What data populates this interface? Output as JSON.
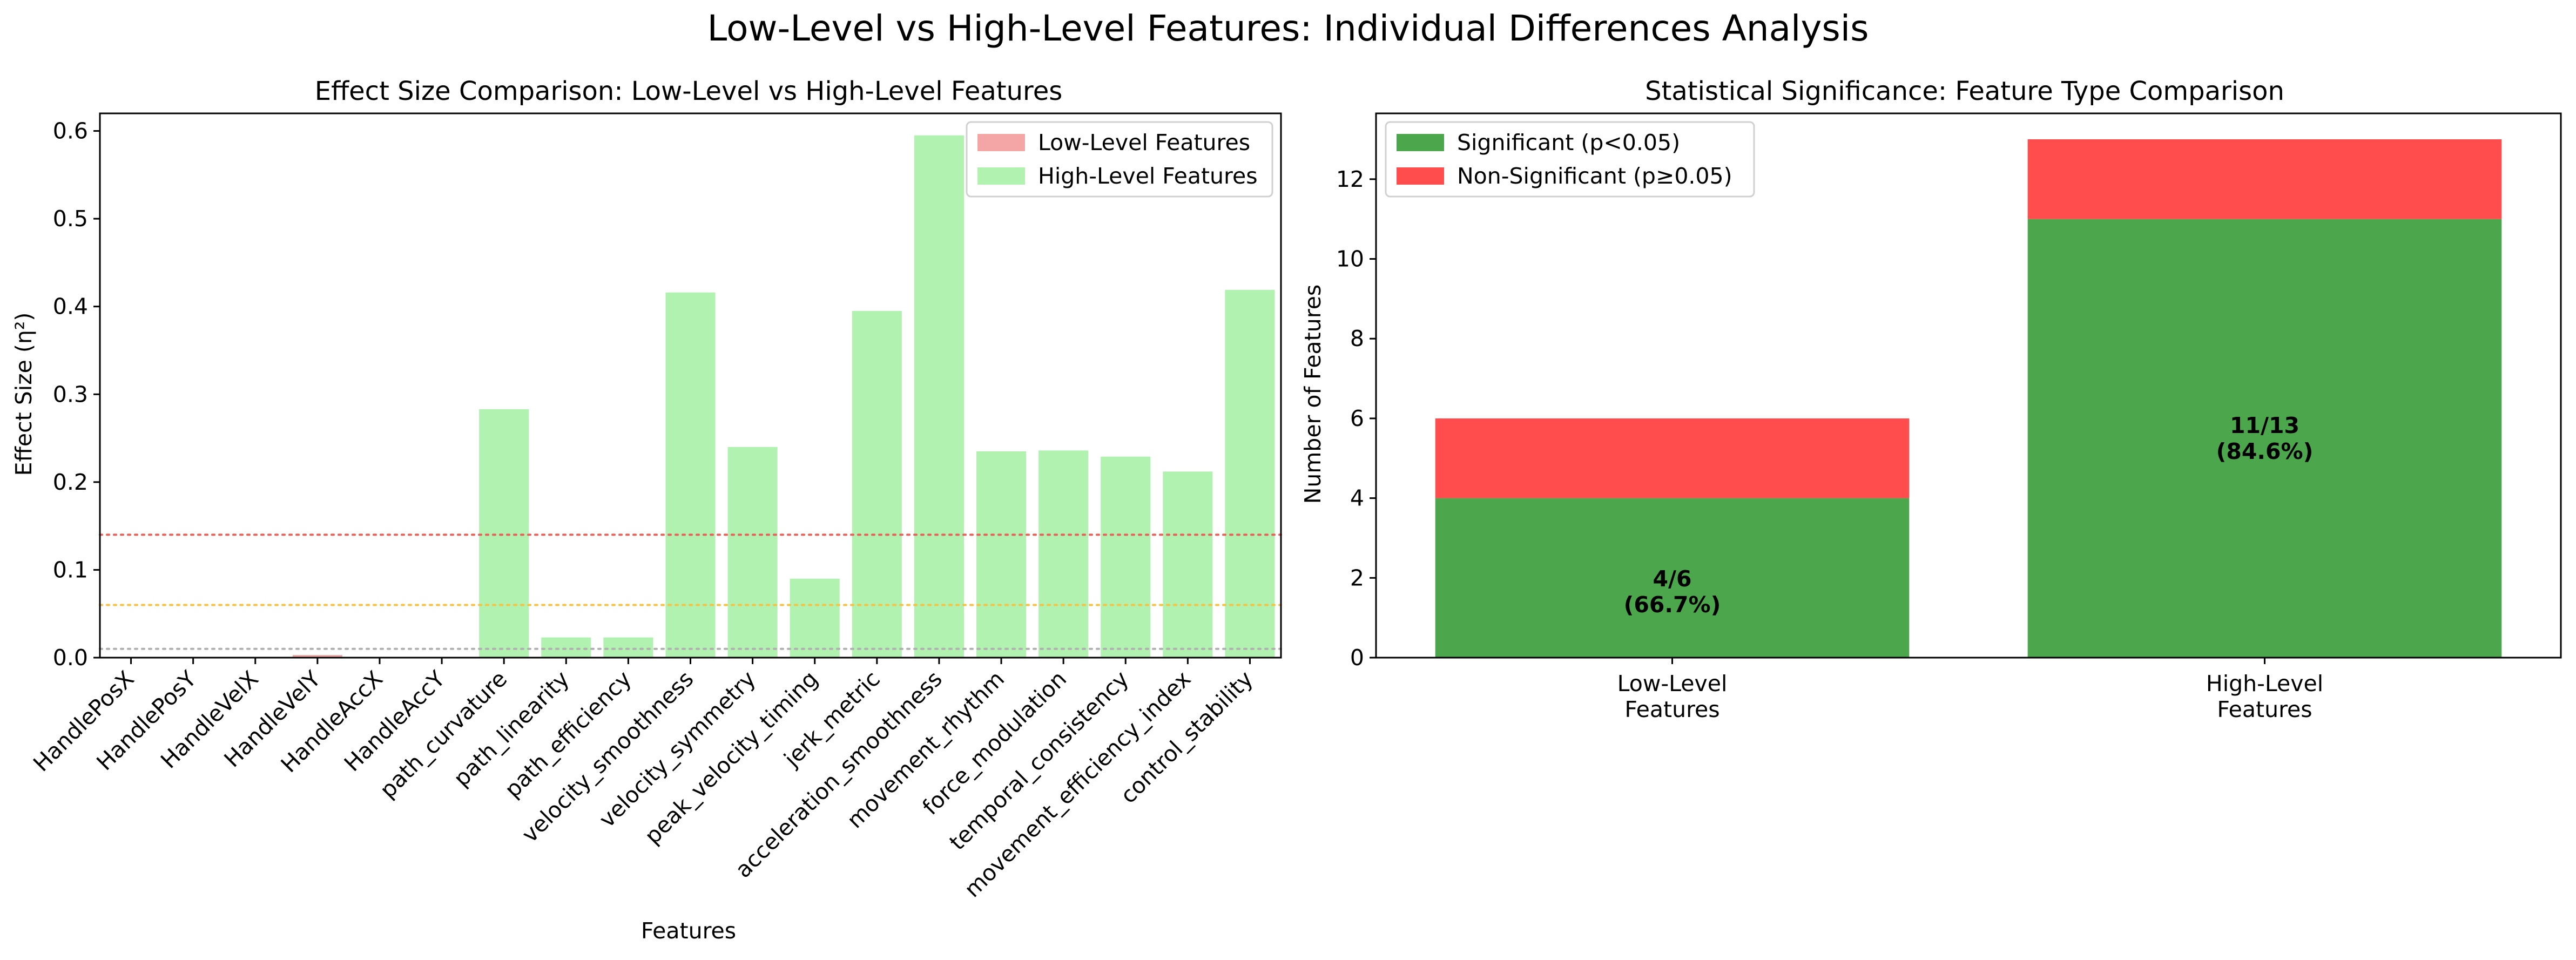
{
  "figure_title": "Low-Level vs High-Level Features: Individual Differences Analysis",
  "chart_data": [
    {
      "type": "bar",
      "title": "Effect Size Comparison: Low-Level vs High-Level Features",
      "xlabel": "Features",
      "ylabel": "Effect Size (η²)",
      "ylim": [
        0,
        0.62
      ],
      "yticks": [
        0.0,
        0.1,
        0.2,
        0.3,
        0.4,
        0.5,
        0.6
      ],
      "grid": false,
      "legend_placement": "upper right",
      "categories": [
        "HandlePosX",
        "HandlePosY",
        "HandleVelX",
        "HandleVelY",
        "HandleAccX",
        "HandleAccY",
        "path_curvature",
        "path_linearity",
        "path_efficiency",
        "velocity_smoothness",
        "velocity_symmetry",
        "peak_velocity_timing",
        "jerk_metric",
        "acceleration_smoothness",
        "movement_rhythm",
        "force_modulation",
        "temporal_consistency",
        "movement_efficiency_index",
        "control_stability"
      ],
      "values": [
        0.0005,
        0.0003,
        0.0004,
        0.003,
        0.0006,
        0.0003,
        0.283,
        0.023,
        0.023,
        0.416,
        0.24,
        0.09,
        0.395,
        0.595,
        0.235,
        0.236,
        0.229,
        0.212,
        0.419
      ],
      "groups": [
        "Low-Level Features",
        "Low-Level Features",
        "Low-Level Features",
        "Low-Level Features",
        "Low-Level Features",
        "Low-Level Features",
        "High-Level Features",
        "High-Level Features",
        "High-Level Features",
        "High-Level Features",
        "High-Level Features",
        "High-Level Features",
        "High-Level Features",
        "High-Level Features",
        "High-Level Features",
        "High-Level Features",
        "High-Level Features",
        "High-Level Features",
        "High-Level Features"
      ],
      "legend": [
        {
          "label": "Low-Level Features",
          "color": "#f4a6a6"
        },
        {
          "label": "High-Level Features",
          "color": "#b1f2b1"
        }
      ],
      "reference_lines": [
        {
          "value": 0.14,
          "color": "#e8605a"
        },
        {
          "value": 0.06,
          "color": "#f5c242"
        },
        {
          "value": 0.01,
          "color": "#b0b0b0"
        }
      ]
    },
    {
      "type": "bar",
      "stacked": true,
      "title": "Statistical Significance: Feature Type Comparison",
      "xlabel": "",
      "ylabel": "Number of Features",
      "ylim": [
        0,
        13.65
      ],
      "yticks": [
        0,
        2,
        4,
        6,
        8,
        10,
        12
      ],
      "grid": false,
      "legend_placement": "upper left",
      "categories": [
        "Low-Level\nFeatures",
        "High-Level\nFeatures"
      ],
      "series": [
        {
          "name": "Significant (p<0.05)",
          "color": "#4ca64c",
          "values": [
            4,
            11
          ]
        },
        {
          "name": "Non-Significant (p≥0.05)",
          "color": "#ff4c4c",
          "values": [
            2,
            2
          ]
        }
      ],
      "bar_labels": [
        {
          "line1": "4/6",
          "line2": "(66.7%)",
          "y": 1.65
        },
        {
          "line1": "11/13",
          "line2": "(84.6%)",
          "y": 5.5
        }
      ]
    }
  ]
}
